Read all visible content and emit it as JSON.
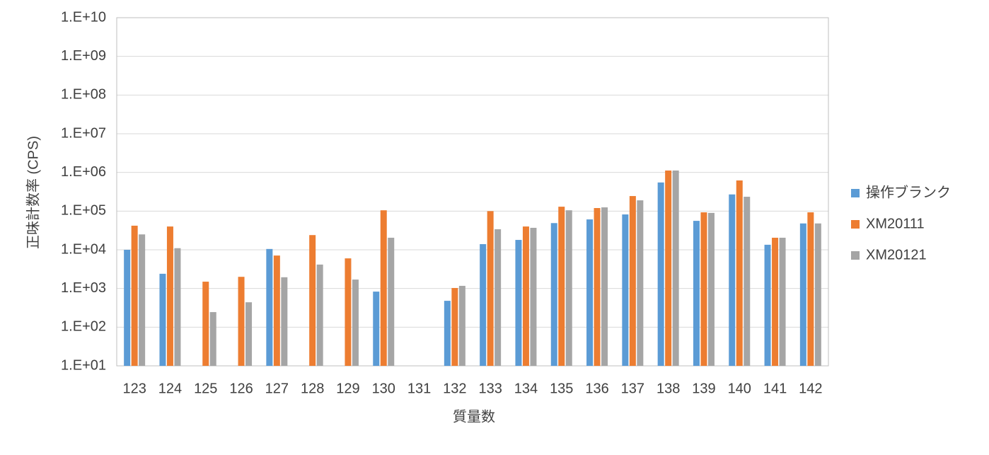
{
  "chart_data": {
    "type": "bar",
    "x_label": "質量数",
    "y_label": "正味計数率 (CPS)",
    "categories": [
      "123",
      "124",
      "125",
      "126",
      "127",
      "128",
      "129",
      "130",
      "131",
      "132",
      "133",
      "134",
      "135",
      "136",
      "137",
      "138",
      "139",
      "140",
      "141",
      "142"
    ],
    "series": [
      {
        "name": "操作ブランク",
        "color": "#5b9bd5",
        "values": [
          10000,
          2400,
          null,
          null,
          10500,
          null,
          null,
          830,
          null,
          480,
          14000,
          18000,
          49000,
          61000,
          82000,
          550000,
          56000,
          270000,
          13500,
          48000
        ]
      },
      {
        "name": "XM20111",
        "color": "#ed7d31",
        "values": [
          42000,
          40000,
          1500,
          2000,
          7100,
          24000,
          6000,
          105000,
          null,
          1030,
          100000,
          40000,
          130000,
          120000,
          245000,
          1120000,
          93000,
          620000,
          20500,
          93000
        ]
      },
      {
        "name": "XM20121",
        "color": "#a5a5a5",
        "values": [
          25000,
          11000,
          245,
          440,
          1950,
          4150,
          1700,
          20500,
          null,
          1170,
          34000,
          37000,
          105000,
          125000,
          190000,
          1120000,
          90000,
          235000,
          20500,
          48000
        ]
      }
    ],
    "ylim": [
      10,
      10000000000
    ],
    "log_scale": true,
    "grid": true,
    "legend": "right",
    "yticks": [
      {
        "value": 10,
        "label": "1.E+01"
      },
      {
        "value": 100,
        "label": "1.E+02"
      },
      {
        "value": 1000,
        "label": "1.E+03"
      },
      {
        "value": 10000,
        "label": "1.E+04"
      },
      {
        "value": 100000,
        "label": "1.E+05"
      },
      {
        "value": 1000000,
        "label": "1.E+06"
      },
      {
        "value": 10000000,
        "label": "1.E+07"
      },
      {
        "value": 100000000,
        "label": "1.E+08"
      },
      {
        "value": 1000000000,
        "label": "1.E+09"
      },
      {
        "value": 10000000000,
        "label": "1.E+10"
      }
    ]
  }
}
